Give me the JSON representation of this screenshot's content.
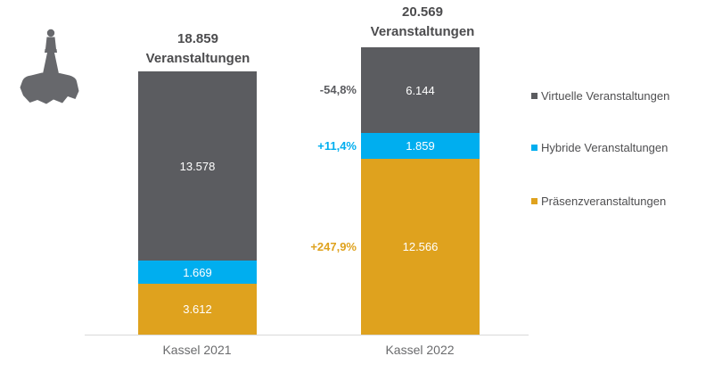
{
  "icon": {
    "name": "hercules-monument-icon",
    "color": "#67686c"
  },
  "chart_data": {
    "type": "bar",
    "stacked": true,
    "grid": false,
    "legend_position": "right",
    "categories": [
      "Kassel 2021",
      "Kassel 2022"
    ],
    "series": [
      {
        "name": "Virtuelle Veranstaltungen",
        "color": "#5b5c60",
        "values": [
          13578,
          6144
        ],
        "labels": [
          "13.578",
          "6.144"
        ]
      },
      {
        "name": "Hybride Veranstaltungen",
        "color": "#00aeef",
        "values": [
          1669,
          1859
        ],
        "labels": [
          "1.669",
          "1.859"
        ]
      },
      {
        "name": "Präsenzveranstaltungen",
        "color": "#dfa21e",
        "values": [
          3612,
          12566
        ],
        "labels": [
          "3.612",
          "12.566"
        ]
      }
    ],
    "totals": [
      18859,
      20569
    ],
    "total_labels": [
      {
        "line1": "18.859",
        "line2": "Veranstaltungen"
      },
      {
        "line1": "20.569",
        "line2": "Veranstaltungen"
      }
    ],
    "change_labels": [
      {
        "text": "-54,8%",
        "series": "Virtuelle Veranstaltungen",
        "color": "#5b5c60"
      },
      {
        "text": "+11,4%",
        "series": "Hybride Veranstaltungen",
        "color": "#00aeef"
      },
      {
        "text": "+247,9%",
        "series": "Präsenzveranstaltungen",
        "color": "#dfa21e"
      }
    ]
  }
}
